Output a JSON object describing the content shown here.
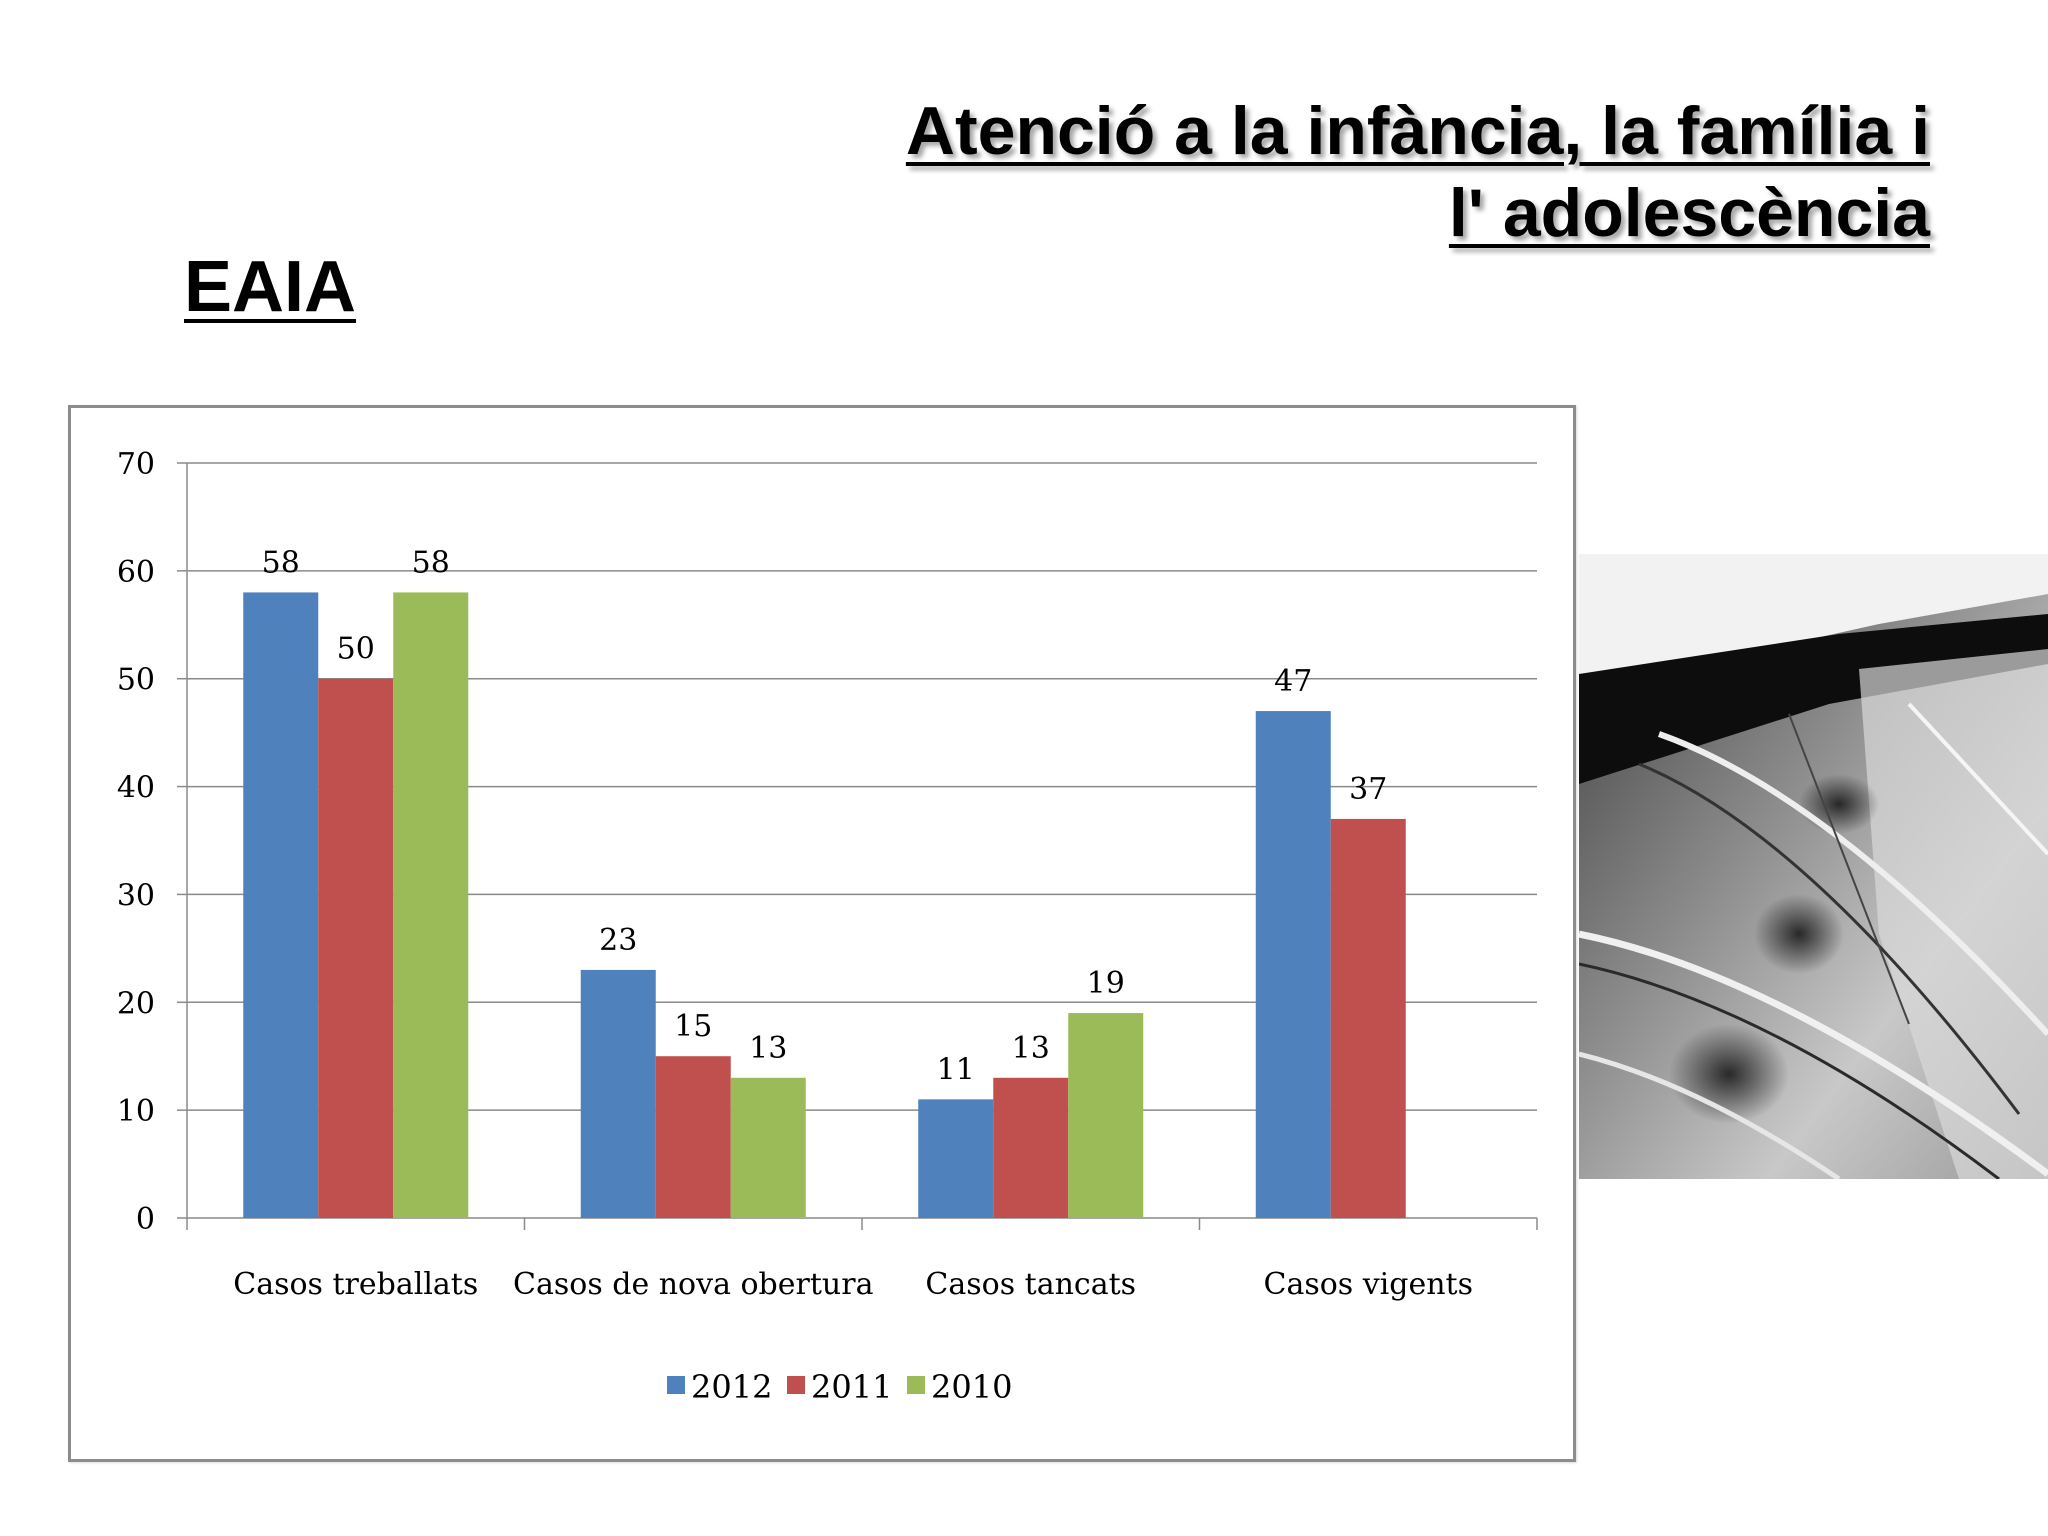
{
  "slide": {
    "title_line1": "Atenció a la infància, la família i",
    "title_line2": "l' adolescència",
    "subtitle": "EAIA"
  },
  "chart_data": {
    "type": "bar",
    "categories": [
      "Casos treballats",
      "Casos de nova obertura",
      "Casos tancats",
      "Casos vigents"
    ],
    "series": [
      {
        "name": "2012",
        "color": "#4f81bd",
        "values": [
          58,
          23,
          11,
          47
        ]
      },
      {
        "name": "2011",
        "color": "#c0504d",
        "values": [
          50,
          15,
          13,
          37
        ]
      },
      {
        "name": "2010",
        "color": "#9bbb59",
        "values": [
          58,
          13,
          19,
          null
        ]
      }
    ],
    "ylim": [
      0,
      70
    ],
    "yticks": [
      0,
      10,
      20,
      30,
      40,
      50,
      60,
      70
    ],
    "grid": true,
    "legend_position": "bottom",
    "data_labels": true
  }
}
